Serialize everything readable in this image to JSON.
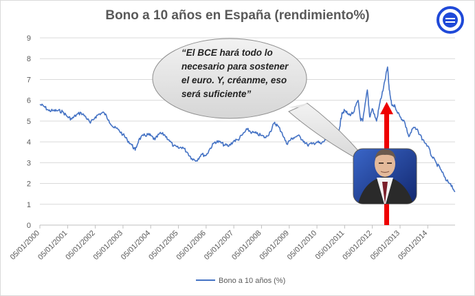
{
  "chart_data": {
    "type": "line",
    "title": "Bono a 10 años en España (rendimiento%)",
    "xlabel": "",
    "ylabel": "",
    "ylim": [
      0,
      9
    ],
    "yticks": [
      "0",
      "1",
      "2",
      "3",
      "4",
      "5",
      "6",
      "7",
      "8",
      "9"
    ],
    "xticks": [
      "05/01/2000",
      "05/01/2001",
      "05/01/2002",
      "05/01/2003",
      "05/01/2004",
      "05/01/2005",
      "05/01/2006",
      "05/01/2007",
      "05/01/2008",
      "05/01/2009",
      "05/01/2010",
      "05/01/2011",
      "05/01/2012",
      "05/01/2013",
      "05/01/2014"
    ],
    "xlim": [
      "2000-01-05",
      "2014-12-31"
    ],
    "grid": "horizontal",
    "legend_position": "bottom",
    "series": [
      {
        "name": "Bono a 10 años (%)",
        "color": "#4472c4",
        "points": [
          [
            "2000-01-05",
            5.8
          ],
          [
            "2000-03-01",
            5.7
          ],
          [
            "2000-05-01",
            5.5
          ],
          [
            "2000-07-01",
            5.5
          ],
          [
            "2000-09-01",
            5.5
          ],
          [
            "2000-11-01",
            5.45
          ],
          [
            "2001-01-05",
            5.2
          ],
          [
            "2001-03-01",
            5.1
          ],
          [
            "2001-05-01",
            5.3
          ],
          [
            "2001-07-01",
            5.4
          ],
          [
            "2001-09-01",
            5.2
          ],
          [
            "2001-11-01",
            4.9
          ],
          [
            "2002-01-05",
            5.2
          ],
          [
            "2002-03-01",
            5.35
          ],
          [
            "2002-05-01",
            5.4
          ],
          [
            "2002-07-01",
            5.05
          ],
          [
            "2002-09-01",
            4.7
          ],
          [
            "2002-11-01",
            4.6
          ],
          [
            "2003-01-05",
            4.35
          ],
          [
            "2003-03-01",
            4.1
          ],
          [
            "2003-05-01",
            3.85
          ],
          [
            "2003-06-15",
            3.6
          ],
          [
            "2003-08-01",
            4.1
          ],
          [
            "2003-10-01",
            4.3
          ],
          [
            "2003-12-01",
            4.35
          ],
          [
            "2004-01-05",
            4.3
          ],
          [
            "2004-03-01",
            4.1
          ],
          [
            "2004-05-01",
            4.4
          ],
          [
            "2004-07-01",
            4.35
          ],
          [
            "2004-09-01",
            4.1
          ],
          [
            "2004-11-01",
            3.8
          ],
          [
            "2005-01-05",
            3.7
          ],
          [
            "2005-03-01",
            3.75
          ],
          [
            "2005-05-01",
            3.5
          ],
          [
            "2005-07-01",
            3.2
          ],
          [
            "2005-09-01",
            3.1
          ],
          [
            "2005-11-01",
            3.4
          ],
          [
            "2006-01-05",
            3.35
          ],
          [
            "2006-03-01",
            3.7
          ],
          [
            "2006-05-01",
            4.0
          ],
          [
            "2006-07-01",
            4.0
          ],
          [
            "2006-09-01",
            3.85
          ],
          [
            "2006-11-01",
            3.8
          ],
          [
            "2007-01-05",
            4.05
          ],
          [
            "2007-03-01",
            4.1
          ],
          [
            "2007-05-01",
            4.35
          ],
          [
            "2007-07-01",
            4.6
          ],
          [
            "2007-09-01",
            4.45
          ],
          [
            "2007-11-01",
            4.4
          ],
          [
            "2008-01-05",
            4.3
          ],
          [
            "2008-03-01",
            4.2
          ],
          [
            "2008-05-01",
            4.5
          ],
          [
            "2008-06-20",
            4.9
          ],
          [
            "2008-08-01",
            4.8
          ],
          [
            "2008-10-01",
            4.45
          ],
          [
            "2008-12-01",
            3.9
          ],
          [
            "2009-01-05",
            4.05
          ],
          [
            "2009-03-01",
            4.2
          ],
          [
            "2009-05-01",
            4.3
          ],
          [
            "2009-07-01",
            4.1
          ],
          [
            "2009-09-01",
            3.85
          ],
          [
            "2009-11-01",
            3.9
          ],
          [
            "2010-01-05",
            4.0
          ],
          [
            "2010-03-01",
            3.9
          ],
          [
            "2010-05-01",
            4.1
          ],
          [
            "2010-07-01",
            4.4
          ],
          [
            "2010-09-01",
            4.15
          ],
          [
            "2010-11-01",
            4.7
          ],
          [
            "2010-12-01",
            5.4
          ],
          [
            "2011-01-05",
            5.5
          ],
          [
            "2011-03-01",
            5.3
          ],
          [
            "2011-05-01",
            5.4
          ],
          [
            "2011-07-01",
            6.0
          ],
          [
            "2011-08-01",
            5.1
          ],
          [
            "2011-09-01",
            5.0
          ],
          [
            "2011-11-01",
            6.5
          ],
          [
            "2011-12-01",
            5.2
          ],
          [
            "2012-01-05",
            5.6
          ],
          [
            "2012-03-01",
            5.0
          ],
          [
            "2012-04-15",
            5.9
          ],
          [
            "2012-06-01",
            6.6
          ],
          [
            "2012-07-24",
            7.6
          ],
          [
            "2012-08-15",
            6.5
          ],
          [
            "2012-09-15",
            5.8
          ],
          [
            "2012-11-01",
            5.7
          ],
          [
            "2013-01-05",
            5.2
          ],
          [
            "2013-03-01",
            5.0
          ],
          [
            "2013-05-01",
            4.25
          ],
          [
            "2013-07-01",
            4.7
          ],
          [
            "2013-09-01",
            4.5
          ],
          [
            "2013-11-01",
            4.1
          ],
          [
            "2014-01-05",
            3.8
          ],
          [
            "2014-03-01",
            3.3
          ],
          [
            "2014-05-01",
            2.95
          ],
          [
            "2014-07-01",
            2.65
          ],
          [
            "2014-09-01",
            2.15
          ],
          [
            "2014-11-01",
            2.0
          ],
          [
            "2014-12-31",
            1.6
          ]
        ]
      }
    ]
  },
  "callout": {
    "quote_lines": [
      "“El BCE hará todo lo",
      "necesario para sostener",
      "el euro. Y, créanme, eso",
      "será suficiente”"
    ]
  },
  "logo": {
    "color": "#1f49d8"
  },
  "arrow": {
    "color": "#ee0000"
  },
  "photo": {
    "description_icon": "person-icon"
  }
}
